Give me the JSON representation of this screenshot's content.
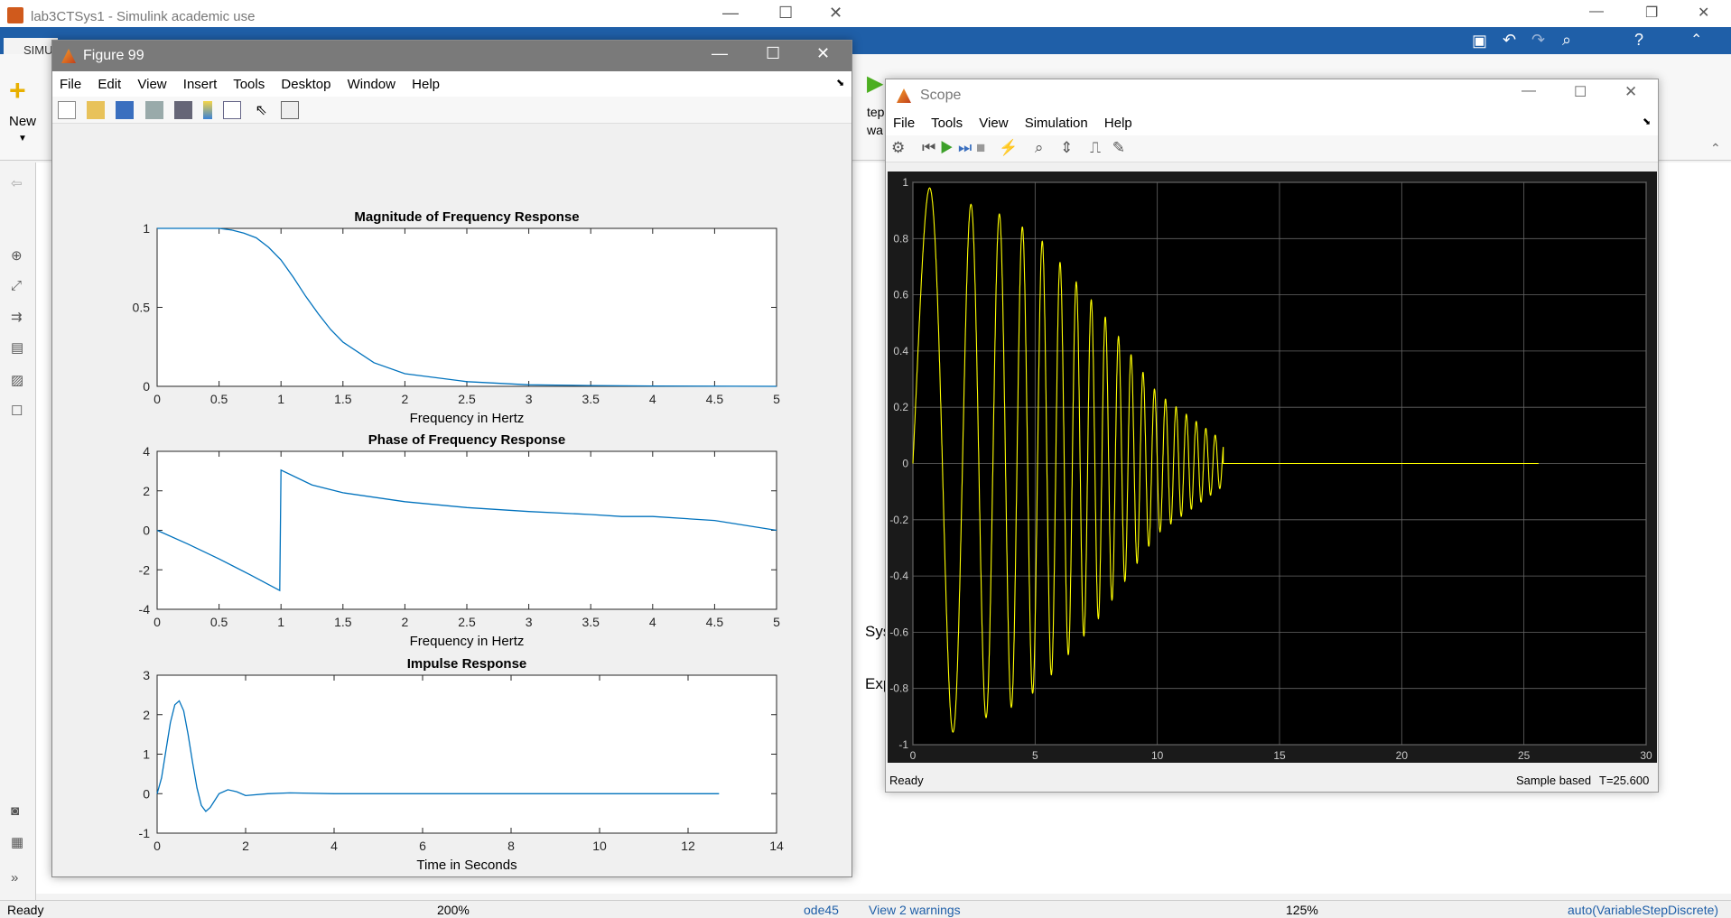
{
  "simulink": {
    "title": "lab3CTSys1 - Simulink academic use",
    "tab": "SIMU",
    "new_label": "New",
    "status_left": "Ready",
    "zoom_left": "200%",
    "solver": "ode45",
    "warnings": "View 2 warnings",
    "zoom_right": "125%",
    "solver_right": "auto(VariableStepDiscrete)",
    "partial_text": [
      "tep",
      "wa",
      "Sys",
      "Exp"
    ]
  },
  "figure": {
    "title": "Figure 99",
    "menu": [
      "File",
      "Edit",
      "View",
      "Insert",
      "Tools",
      "Desktop",
      "Window",
      "Help"
    ],
    "plots": [
      {
        "title": "Magnitude of Frequency Response",
        "xlabel": "Frequency in Hertz",
        "xticks": [
          "0",
          "0.5",
          "1",
          "1.5",
          "2",
          "2.5",
          "3",
          "3.5",
          "4",
          "4.5",
          "5"
        ],
        "yticks": [
          "1",
          "0.5",
          "0"
        ]
      },
      {
        "title": "Phase of Frequency Response",
        "xlabel": "Frequency in Hertz",
        "xticks": [
          "0",
          "0.5",
          "1",
          "1.5",
          "2",
          "2.5",
          "3",
          "3.5",
          "4",
          "4.5",
          "5"
        ],
        "yticks": [
          "4",
          "2",
          "0",
          "-2",
          "-4"
        ]
      },
      {
        "title": "Impulse Response",
        "xlabel": "Time in Seconds",
        "xticks": [
          "0",
          "2",
          "4",
          "6",
          "8",
          "10",
          "12",
          "14"
        ],
        "yticks": [
          "3",
          "2",
          "1",
          "0",
          "-1"
        ]
      }
    ]
  },
  "scope": {
    "title": "Scope",
    "menu": [
      "File",
      "Tools",
      "View",
      "Simulation",
      "Help"
    ],
    "status": "Ready",
    "mode": "Sample based",
    "time": "T=25.600",
    "yticks": [
      "1",
      "0.8",
      "0.6",
      "0.4",
      "0.2",
      "0",
      "-0.2",
      "-0.4",
      "-0.6",
      "-0.8",
      "-1"
    ],
    "xticks": [
      "0",
      "5",
      "10",
      "15",
      "20",
      "25",
      "30"
    ]
  },
  "colors": {
    "line_blue": "#0072bd",
    "scope_trace": "#ffff00",
    "scope_bg": "#000000",
    "blue_bar": "#1f5fa8"
  },
  "chart_data": [
    {
      "type": "line",
      "title": "Magnitude of Frequency Response",
      "xlabel": "Frequency in Hertz",
      "ylabel": "",
      "xlim": [
        0,
        5
      ],
      "ylim": [
        0,
        1
      ],
      "x": [
        0,
        0.25,
        0.5,
        0.6,
        0.7,
        0.8,
        0.9,
        1.0,
        1.1,
        1.2,
        1.3,
        1.4,
        1.5,
        1.75,
        2.0,
        2.5,
        3.0,
        3.5,
        4.0,
        5.0
      ],
      "y": [
        1.0,
        1.0,
        1.0,
        0.99,
        0.97,
        0.94,
        0.88,
        0.8,
        0.69,
        0.57,
        0.46,
        0.36,
        0.28,
        0.15,
        0.08,
        0.03,
        0.01,
        0.005,
        0.002,
        0.0
      ]
    },
    {
      "type": "line",
      "title": "Phase of Frequency Response",
      "xlabel": "Frequency in Hertz",
      "ylabel": "",
      "xlim": [
        0,
        5
      ],
      "ylim": [
        -4,
        4
      ],
      "x": [
        0,
        0.25,
        0.5,
        0.75,
        0.99,
        1.0,
        1.25,
        1.5,
        2.0,
        2.5,
        3.0,
        3.5,
        3.75,
        4.0,
        4.5,
        5.0
      ],
      "y": [
        0,
        -0.7,
        -1.45,
        -2.25,
        -3.05,
        3.05,
        2.3,
        1.9,
        1.45,
        1.15,
        0.95,
        0.8,
        0.7,
        0.7,
        0.5,
        0.0
      ]
    },
    {
      "type": "line",
      "title": "Impulse Response",
      "xlabel": "Time in Seconds",
      "ylabel": "",
      "xlim": [
        0,
        14
      ],
      "ylim": [
        -1,
        3
      ],
      "x": [
        0,
        0.1,
        0.2,
        0.3,
        0.4,
        0.5,
        0.6,
        0.7,
        0.8,
        0.9,
        1.0,
        1.1,
        1.2,
        1.4,
        1.6,
        1.8,
        2.0,
        2.5,
        3.0,
        4.0,
        6.0,
        8.0,
        10.0,
        12.0,
        12.7
      ],
      "y": [
        0,
        0.4,
        1.1,
        1.8,
        2.25,
        2.35,
        2.1,
        1.5,
        0.8,
        0.15,
        -0.3,
        -0.45,
        -0.35,
        0.0,
        0.1,
        0.05,
        -0.05,
        0.0,
        0.02,
        0.0,
        0.0,
        0.0,
        0.0,
        0.0,
        0.0
      ]
    },
    {
      "type": "line",
      "title": "",
      "xlabel": "",
      "ylabel": "",
      "xlim": [
        0,
        30
      ],
      "ylim": [
        -1,
        1
      ],
      "series": [
        {
          "x": [
            0,
            1.2,
            2.1,
            3.8,
            5.2,
            7.8,
            10.0,
            12.7,
            12.8,
            25.6
          ],
          "y": [
            0,
            0.98,
            -0.93,
            0.88,
            -0.8,
            0.53,
            -0.25,
            -0.08,
            0.0,
            0.0
          ]
        }
      ]
    }
  ]
}
